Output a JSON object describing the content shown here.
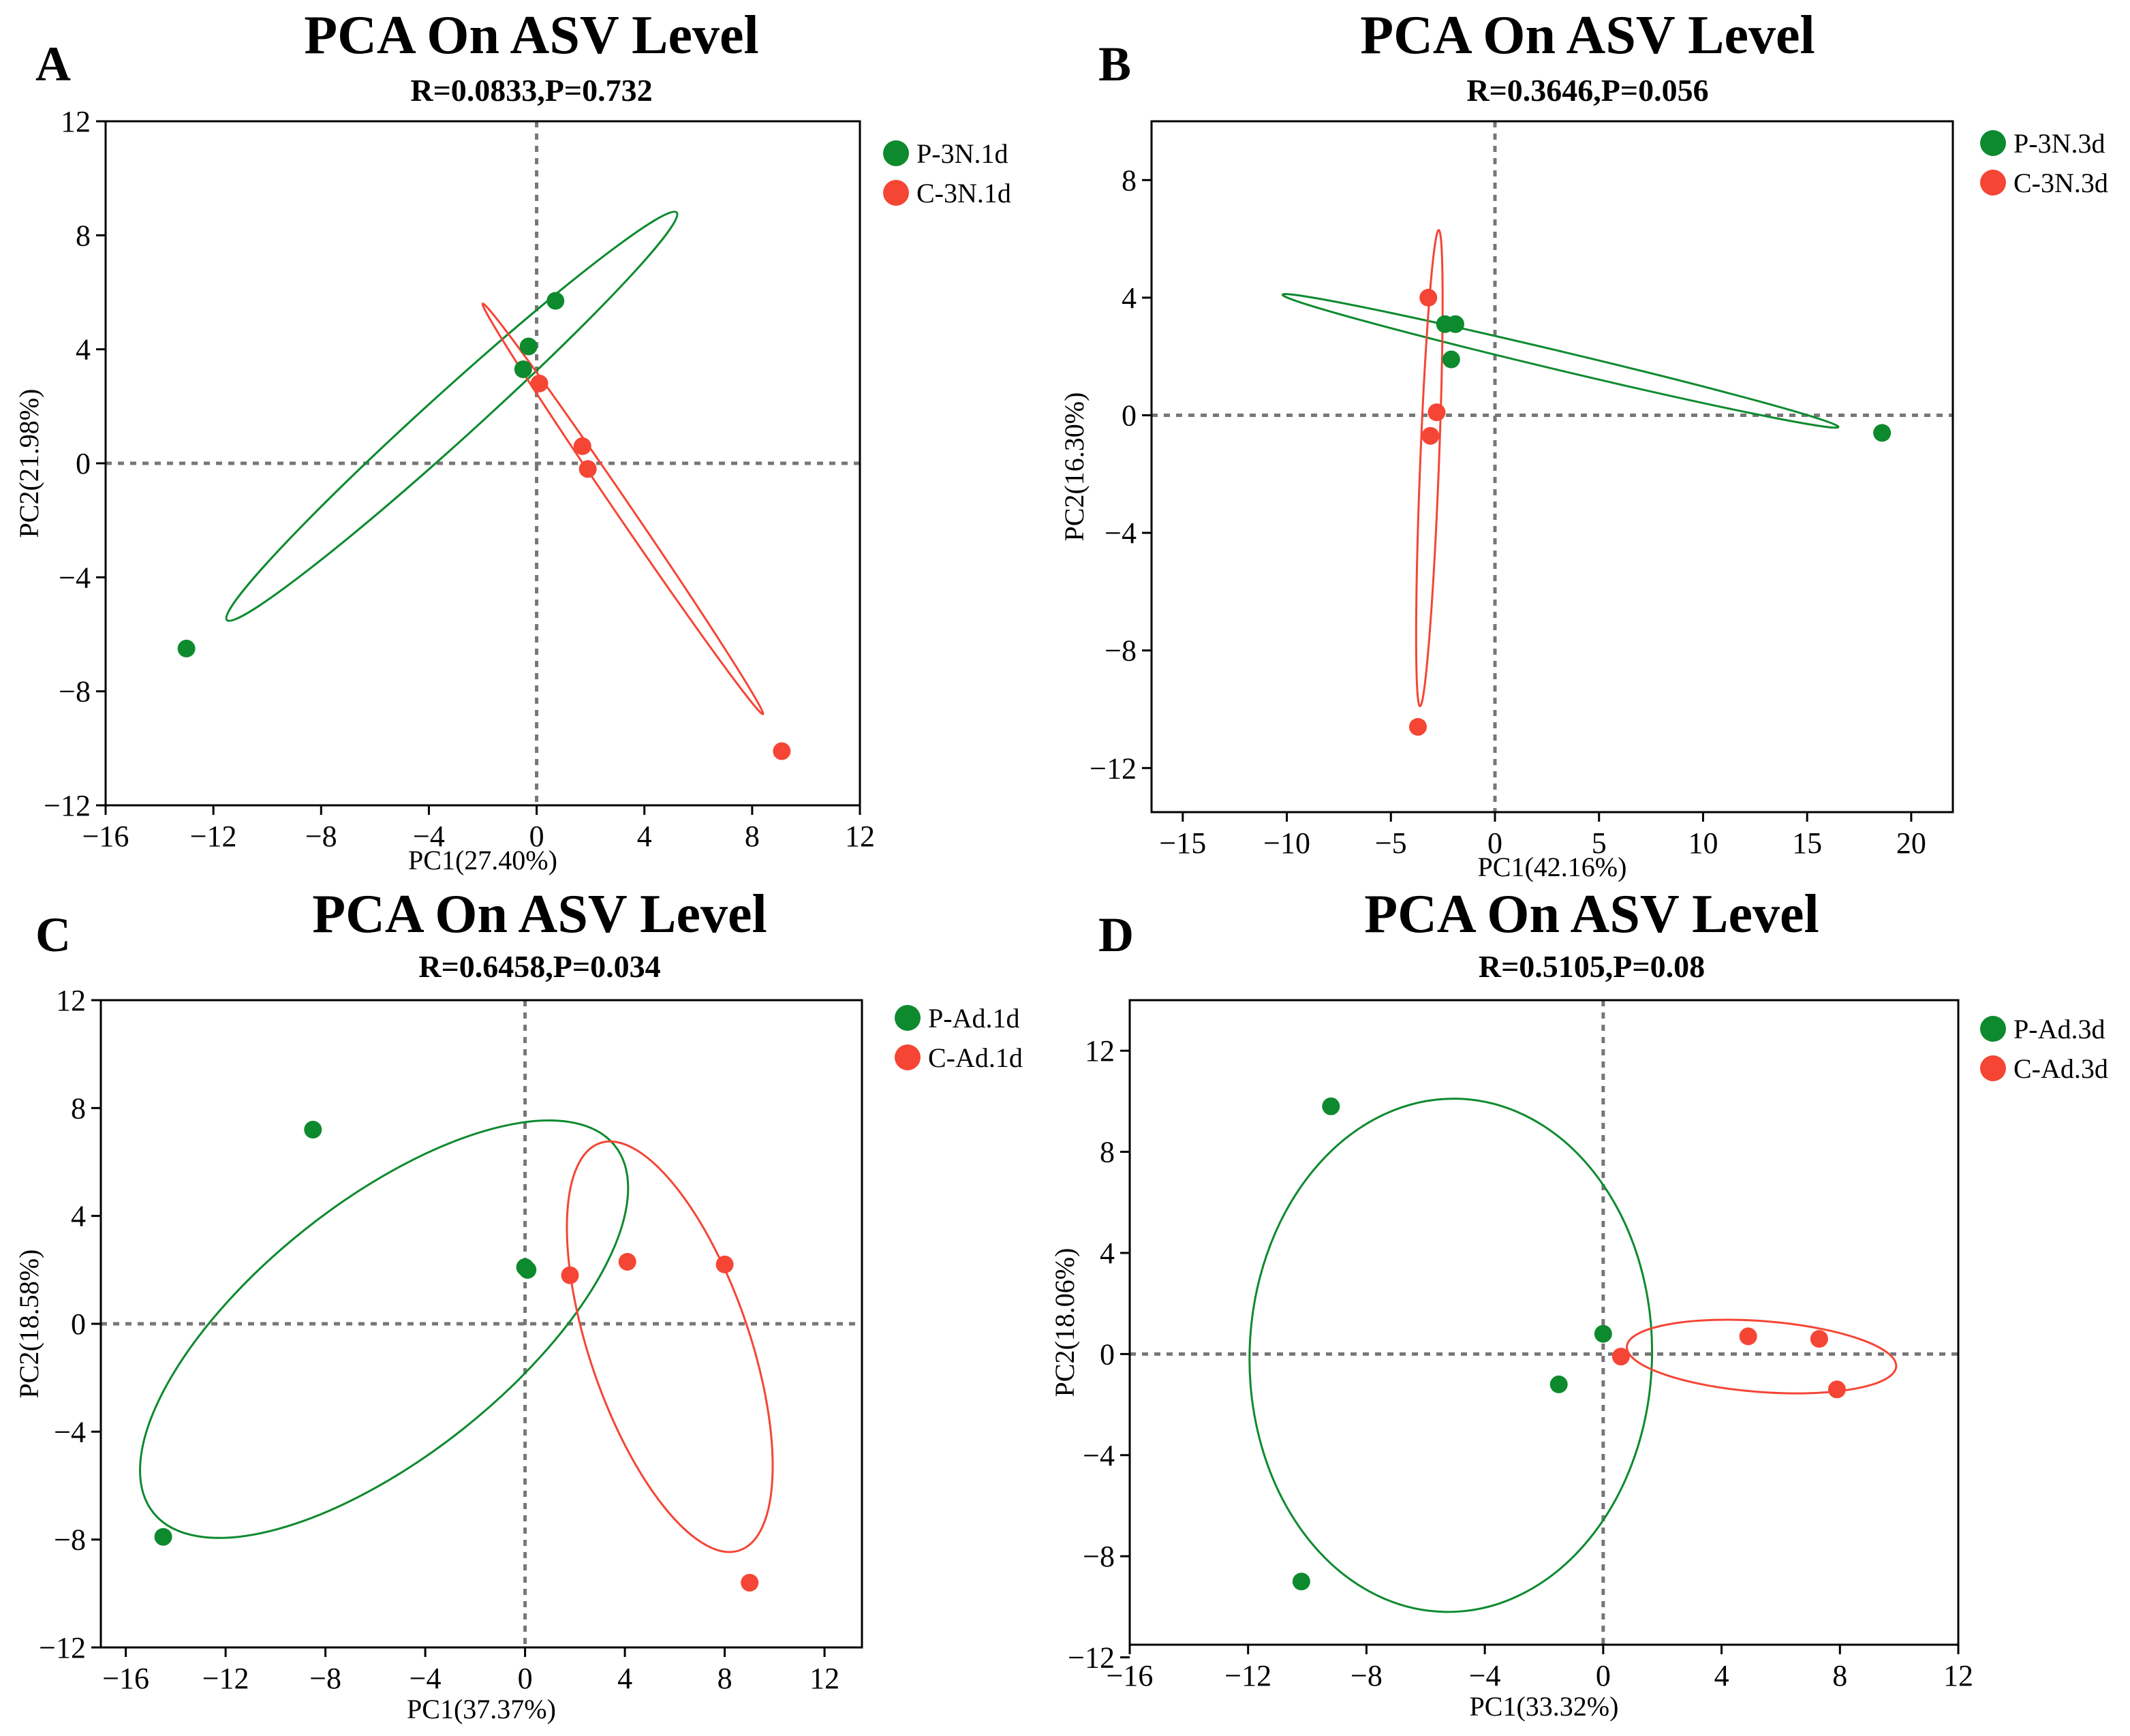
{
  "figure": {
    "ellipse_note": "95% confidence ellipses per group"
  },
  "colors": {
    "P": "#0d8a2e",
    "C": "#f54535",
    "zero_line": "#777777",
    "axis": "#000000"
  },
  "chart_data": [
    {
      "type": "scatter",
      "panel_label": "A",
      "title": "PCA On ASV Level",
      "subtitle": "R=0.0833,P=0.732",
      "xlabel": "PC1(27.40%)",
      "ylabel": "PC2(21.98%)",
      "xlim": [
        -16,
        12
      ],
      "ylim": [
        -12,
        12
      ],
      "xticks": [
        -16,
        -12,
        -8,
        -4,
        0,
        4,
        8,
        12
      ],
      "yticks": [
        -12,
        -8,
        -4,
        0,
        4,
        8,
        12
      ],
      "xtick_labels": [
        "−16",
        "−12",
        "−8",
        "−4",
        "0",
        "4",
        "8",
        "12"
      ],
      "ytick_labels": [
        "−12",
        "−8",
        "−4",
        "0",
        "4",
        "8",
        "12"
      ],
      "series": [
        {
          "name": "P-3N.1d",
          "color_key": "P",
          "points": [
            [
              0.7,
              5.7
            ],
            [
              -0.3,
              4.1
            ],
            [
              -0.5,
              3.3
            ],
            [
              -13.0,
              -6.5
            ]
          ],
          "ellipse": {
            "endpoints": [
              [
                -11.5,
                -5.5
              ],
              [
                5.2,
                8.8
              ]
            ],
            "half_width": 0.9
          }
        },
        {
          "name": "C-3N.1d",
          "color_key": "C",
          "points": [
            [
              0.1,
              2.8
            ],
            [
              1.7,
              0.6
            ],
            [
              1.9,
              -0.2
            ],
            [
              9.1,
              -10.1
            ]
          ],
          "ellipse": {
            "endpoints": [
              [
                -2.0,
                5.6
              ],
              [
                8.4,
                -8.8
              ]
            ],
            "half_width": 0.28
          }
        }
      ]
    },
    {
      "type": "scatter",
      "panel_label": "B",
      "title": "PCA On ASV Level",
      "subtitle": "R=0.3646,P=0.056",
      "xlabel": "PC1(42.16%)",
      "ylabel": "PC2(16.30%)",
      "xlim": [
        -16.5,
        22
      ],
      "ylim": [
        -13.5,
        10
      ],
      "xticks": [
        -15,
        -10,
        -5,
        0,
        5,
        10,
        15,
        20
      ],
      "yticks": [
        -12,
        -8,
        -4,
        0,
        4,
        8
      ],
      "xtick_labels": [
        "−15",
        "−10",
        "−5",
        "0",
        "5",
        "10",
        "15",
        "20"
      ],
      "ytick_labels": [
        "−12",
        "−8",
        "−4",
        "0",
        "4",
        "8"
      ],
      "series": [
        {
          "name": "P-3N.3d",
          "color_key": "P",
          "points": [
            [
              -2.4,
              3.1
            ],
            [
              -1.9,
              3.1
            ],
            [
              -2.1,
              1.9
            ],
            [
              18.6,
              -0.6
            ]
          ],
          "ellipse": {
            "endpoints": [
              [
                -10.2,
                4.1
              ],
              [
                16.5,
                -0.4
              ]
            ],
            "half_width": 0.45
          }
        },
        {
          "name": "C-3N.3d",
          "color_key": "C",
          "points": [
            [
              -3.2,
              4.0
            ],
            [
              -2.8,
              0.1
            ],
            [
              -3.1,
              -0.7
            ],
            [
              -3.7,
              -10.6
            ]
          ],
          "ellipse": {
            "endpoints": [
              [
                -2.7,
                6.3
              ],
              [
                -3.6,
                -9.9
              ]
            ],
            "half_width": 0.45
          }
        }
      ]
    },
    {
      "type": "scatter",
      "panel_label": "C",
      "title": "PCA On ASV Level",
      "subtitle": "R=0.6458,P=0.034",
      "xlabel": "PC1(37.37%)",
      "ylabel": "PC2(18.58%)",
      "xlim": [
        -17,
        13.5
      ],
      "ylim": [
        -12,
        12
      ],
      "xticks": [
        -16,
        -12,
        -8,
        -4,
        0,
        4,
        8,
        12
      ],
      "yticks": [
        -12,
        -8,
        -4,
        0,
        4,
        8,
        12
      ],
      "xtick_labels": [
        "−16",
        "−12",
        "−8",
        "−4",
        "0",
        "4",
        "8",
        "12"
      ],
      "ytick_labels": [
        "−12",
        "−8",
        "−4",
        "0",
        "4",
        "8",
        "12"
      ],
      "series": [
        {
          "name": "P-Ad.1d",
          "color_key": "P",
          "points": [
            [
              -8.5,
              7.2
            ],
            [
              0.0,
              2.1
            ],
            [
              0.1,
              2.0
            ],
            [
              -14.5,
              -7.9
            ]
          ],
          "ellipse": {
            "endpoints": [
              [
                -14.9,
                -7.0
              ],
              [
                3.6,
                6.6
              ]
            ],
            "half_width": 5.1
          }
        },
        {
          "name": "C-Ad.1d",
          "color_key": "C",
          "points": [
            [
              1.8,
              1.8
            ],
            [
              4.1,
              2.3
            ],
            [
              8.0,
              2.2
            ],
            [
              9.0,
              -9.6
            ]
          ],
          "ellipse": {
            "endpoints": [
              [
                3.0,
                6.7
              ],
              [
                8.6,
                -8.4
              ]
            ],
            "half_width": 3.2
          }
        }
      ]
    },
    {
      "type": "scatter",
      "panel_label": "D",
      "title": "PCA On ASV Level",
      "subtitle": "R=0.5105,P=0.08",
      "xlabel": "PC1(33.32%)",
      "ylabel": "PC2(18.06%)",
      "xlim": [
        -16,
        12
      ],
      "ylim": [
        -11.5,
        14
      ],
      "xticks": [
        -16,
        -12,
        -8,
        -4,
        0,
        4,
        8,
        12
      ],
      "yticks": [
        -12,
        -8,
        -4,
        0,
        4,
        8,
        12
      ],
      "xtick_labels": [
        "−16",
        "−12",
        "−8",
        "−4",
        "0",
        "4",
        "8",
        "12"
      ],
      "ytick_labels": [
        "−12",
        "−8",
        "−4",
        "0",
        "4",
        "8",
        "12"
      ],
      "series": [
        {
          "name": "P-Ad.3d",
          "color_key": "P",
          "points": [
            [
              -9.2,
              9.8
            ],
            [
              0.0,
              0.8
            ],
            [
              -1.5,
              -1.2
            ],
            [
              -10.2,
              -9.0
            ]
          ],
          "ellipse": {
            "endpoints": [
              [
                -4.9,
                10.1
              ],
              [
                -5.4,
                -10.2
              ]
            ],
            "half_width": 6.8
          }
        },
        {
          "name": "C-Ad.3d",
          "color_key": "C",
          "points": [
            [
              0.6,
              -0.1
            ],
            [
              4.9,
              0.7
            ],
            [
              7.3,
              0.6
            ],
            [
              7.9,
              -1.4
            ]
          ],
          "ellipse": {
            "endpoints": [
              [
                0.8,
                0.3
              ],
              [
                9.9,
                -0.5
              ]
            ],
            "half_width": 1.2
          }
        }
      ]
    }
  ]
}
